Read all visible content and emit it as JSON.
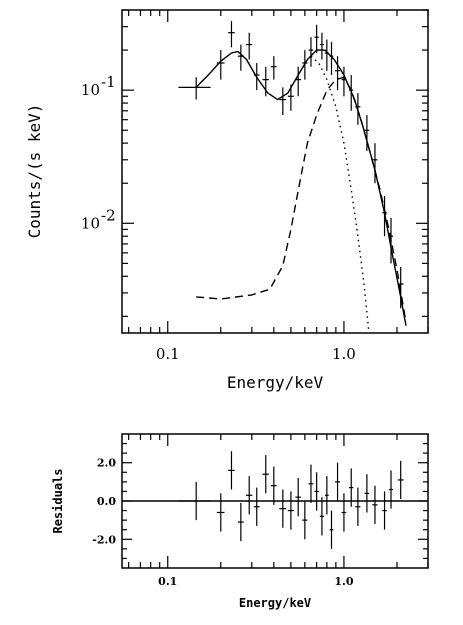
{
  "chart_data": [
    {
      "type": "scatter",
      "xlabel": "Energy/keV",
      "ylabel": "Counts/(s keV)",
      "xscale": "log",
      "yscale": "log",
      "xlim": [
        0.055,
        3.0
      ],
      "ylim": [
        0.0015,
        0.4
      ],
      "x_ticks": [
        {
          "value": 0.1,
          "label": "0.1"
        },
        {
          "value": 1.0,
          "label": "1.0"
        }
      ],
      "y_ticks": [
        {
          "value": 0.01,
          "label": "10",
          "exp": "-2"
        },
        {
          "value": 0.1,
          "label": "10",
          "exp": "-1"
        }
      ],
      "series": [
        {
          "style": "data-crosses",
          "points": [
            {
              "x": 0.145,
              "y": 0.105,
              "xerr": 0.03,
              "yerr": 0.02
            },
            {
              "x": 0.2,
              "y": 0.16,
              "xerr": 0.01,
              "yerr": 0.04
            },
            {
              "x": 0.23,
              "y": 0.27,
              "xerr": 0.01,
              "yerr": 0.06
            },
            {
              "x": 0.26,
              "y": 0.18,
              "xerr": 0.01,
              "yerr": 0.04
            },
            {
              "x": 0.29,
              "y": 0.22,
              "xerr": 0.012,
              "yerr": 0.05
            },
            {
              "x": 0.32,
              "y": 0.13,
              "xerr": 0.012,
              "yerr": 0.03
            },
            {
              "x": 0.36,
              "y": 0.12,
              "xerr": 0.015,
              "yerr": 0.03
            },
            {
              "x": 0.4,
              "y": 0.15,
              "xerr": 0.015,
              "yerr": 0.03
            },
            {
              "x": 0.45,
              "y": 0.085,
              "xerr": 0.02,
              "yerr": 0.02
            },
            {
              "x": 0.5,
              "y": 0.09,
              "xerr": 0.02,
              "yerr": 0.02
            },
            {
              "x": 0.55,
              "y": 0.12,
              "xerr": 0.02,
              "yerr": 0.03
            },
            {
              "x": 0.6,
              "y": 0.16,
              "xerr": 0.02,
              "yerr": 0.04
            },
            {
              "x": 0.65,
              "y": 0.2,
              "xerr": 0.02,
              "yerr": 0.05
            },
            {
              "x": 0.7,
              "y": 0.25,
              "xerr": 0.02,
              "yerr": 0.06
            },
            {
              "x": 0.75,
              "y": 0.22,
              "xerr": 0.02,
              "yerr": 0.05
            },
            {
              "x": 0.8,
              "y": 0.19,
              "xerr": 0.02,
              "yerr": 0.05
            },
            {
              "x": 0.85,
              "y": 0.18,
              "xerr": 0.02,
              "yerr": 0.05
            },
            {
              "x": 0.92,
              "y": 0.14,
              "xerr": 0.03,
              "yerr": 0.04
            },
            {
              "x": 1.0,
              "y": 0.12,
              "xerr": 0.03,
              "yerr": 0.03
            },
            {
              "x": 1.1,
              "y": 0.1,
              "xerr": 0.03,
              "yerr": 0.03
            },
            {
              "x": 1.2,
              "y": 0.075,
              "xerr": 0.04,
              "yerr": 0.02
            },
            {
              "x": 1.35,
              "y": 0.05,
              "xerr": 0.04,
              "yerr": 0.015
            },
            {
              "x": 1.5,
              "y": 0.03,
              "xerr": 0.05,
              "yerr": 0.01
            },
            {
              "x": 1.7,
              "y": 0.012,
              "xerr": 0.05,
              "yerr": 0.004
            },
            {
              "x": 1.85,
              "y": 0.008,
              "xerr": 0.05,
              "yerr": 0.003
            },
            {
              "x": 2.1,
              "y": 0.0035,
              "xerr": 0.08,
              "yerr": 0.0012
            }
          ]
        },
        {
          "style": "solid",
          "points": [
            {
              "x": 0.145,
              "y": 0.105
            },
            {
              "x": 0.17,
              "y": 0.13
            },
            {
              "x": 0.2,
              "y": 0.165
            },
            {
              "x": 0.23,
              "y": 0.19
            },
            {
              "x": 0.25,
              "y": 0.195
            },
            {
              "x": 0.28,
              "y": 0.17
            },
            {
              "x": 0.32,
              "y": 0.125
            },
            {
              "x": 0.37,
              "y": 0.095
            },
            {
              "x": 0.42,
              "y": 0.085
            },
            {
              "x": 0.48,
              "y": 0.095
            },
            {
              "x": 0.55,
              "y": 0.13
            },
            {
              "x": 0.62,
              "y": 0.17
            },
            {
              "x": 0.7,
              "y": 0.2
            },
            {
              "x": 0.78,
              "y": 0.2
            },
            {
              "x": 0.88,
              "y": 0.17
            },
            {
              "x": 1.0,
              "y": 0.13
            },
            {
              "x": 1.15,
              "y": 0.085
            },
            {
              "x": 1.3,
              "y": 0.05
            },
            {
              "x": 1.5,
              "y": 0.025
            },
            {
              "x": 1.7,
              "y": 0.012
            },
            {
              "x": 1.9,
              "y": 0.0055
            },
            {
              "x": 2.1,
              "y": 0.0028
            },
            {
              "x": 2.25,
              "y": 0.0017
            }
          ]
        },
        {
          "style": "dashed",
          "points": [
            {
              "x": 0.145,
              "y": 0.0028
            },
            {
              "x": 0.2,
              "y": 0.0027
            },
            {
              "x": 0.3,
              "y": 0.0029
            },
            {
              "x": 0.38,
              "y": 0.0032
            },
            {
              "x": 0.45,
              "y": 0.0048
            },
            {
              "x": 0.5,
              "y": 0.009
            },
            {
              "x": 0.56,
              "y": 0.02
            },
            {
              "x": 0.62,
              "y": 0.04
            },
            {
              "x": 0.7,
              "y": 0.065
            },
            {
              "x": 0.8,
              "y": 0.1
            },
            {
              "x": 0.9,
              "y": 0.12
            },
            {
              "x": 1.0,
              "y": 0.125
            },
            {
              "x": 1.1,
              "y": 0.1
            },
            {
              "x": 1.25,
              "y": 0.06
            },
            {
              "x": 1.4,
              "y": 0.035
            },
            {
              "x": 1.6,
              "y": 0.018
            },
            {
              "x": 1.8,
              "y": 0.009
            },
            {
              "x": 2.0,
              "y": 0.0045
            },
            {
              "x": 2.25,
              "y": 0.0018
            }
          ]
        },
        {
          "style": "dotted",
          "points": [
            {
              "x": 0.65,
              "y": 0.18
            },
            {
              "x": 0.72,
              "y": 0.16
            },
            {
              "x": 0.8,
              "y": 0.12
            },
            {
              "x": 0.9,
              "y": 0.075
            },
            {
              "x": 1.0,
              "y": 0.04
            },
            {
              "x": 1.1,
              "y": 0.018
            },
            {
              "x": 1.2,
              "y": 0.008
            },
            {
              "x": 1.3,
              "y": 0.0035
            },
            {
              "x": 1.38,
              "y": 0.0016
            }
          ]
        }
      ]
    },
    {
      "type": "scatter",
      "xlabel": "Energy/keV",
      "ylabel": "Residuals",
      "xscale": "log",
      "xlim": [
        0.055,
        3.0
      ],
      "ylim": [
        -3.5,
        3.5
      ],
      "x_ticks": [
        {
          "value": 0.1,
          "label": "0.1"
        },
        {
          "value": 1.0,
          "label": "1.0"
        }
      ],
      "y_ticks": [
        {
          "value": -2.0,
          "label": "-2.0"
        },
        {
          "value": 0.0,
          "label": "0.0"
        },
        {
          "value": 2.0,
          "label": "2.0"
        }
      ],
      "zero_line": 0,
      "series": [
        {
          "style": "data-crosses",
          "points": [
            {
              "x": 0.145,
              "y": 0.0,
              "xerr": 0.03,
              "yerr": 1.0
            },
            {
              "x": 0.2,
              "y": -0.6,
              "xerr": 0.01,
              "yerr": 1.0
            },
            {
              "x": 0.23,
              "y": 1.6,
              "xerr": 0.01,
              "yerr": 1.0
            },
            {
              "x": 0.26,
              "y": -1.1,
              "xerr": 0.01,
              "yerr": 1.0
            },
            {
              "x": 0.29,
              "y": 0.3,
              "xerr": 0.012,
              "yerr": 1.0
            },
            {
              "x": 0.32,
              "y": -0.3,
              "xerr": 0.012,
              "yerr": 1.0
            },
            {
              "x": 0.36,
              "y": 1.4,
              "xerr": 0.015,
              "yerr": 1.0
            },
            {
              "x": 0.4,
              "y": 0.8,
              "xerr": 0.015,
              "yerr": 1.0
            },
            {
              "x": 0.45,
              "y": -0.4,
              "xerr": 0.02,
              "yerr": 1.0
            },
            {
              "x": 0.5,
              "y": -0.5,
              "xerr": 0.02,
              "yerr": 1.0
            },
            {
              "x": 0.55,
              "y": 0.2,
              "xerr": 0.02,
              "yerr": 1.0
            },
            {
              "x": 0.6,
              "y": -1.0,
              "xerr": 0.02,
              "yerr": 1.0
            },
            {
              "x": 0.65,
              "y": 0.9,
              "xerr": 0.02,
              "yerr": 1.0
            },
            {
              "x": 0.7,
              "y": 0.5,
              "xerr": 0.02,
              "yerr": 1.0
            },
            {
              "x": 0.75,
              "y": -0.8,
              "xerr": 0.02,
              "yerr": 1.0
            },
            {
              "x": 0.8,
              "y": 0.3,
              "xerr": 0.02,
              "yerr": 1.0
            },
            {
              "x": 0.85,
              "y": -1.5,
              "xerr": 0.02,
              "yerr": 1.0
            },
            {
              "x": 0.92,
              "y": 1.0,
              "xerr": 0.03,
              "yerr": 1.0
            },
            {
              "x": 1.0,
              "y": -0.6,
              "xerr": 0.03,
              "yerr": 1.0
            },
            {
              "x": 1.1,
              "y": 0.7,
              "xerr": 0.03,
              "yerr": 1.0
            },
            {
              "x": 1.2,
              "y": -0.3,
              "xerr": 0.04,
              "yerr": 1.0
            },
            {
              "x": 1.35,
              "y": 0.4,
              "xerr": 0.04,
              "yerr": 1.0
            },
            {
              "x": 1.5,
              "y": -0.2,
              "xerr": 0.05,
              "yerr": 1.0
            },
            {
              "x": 1.7,
              "y": -0.5,
              "xerr": 0.05,
              "yerr": 1.0
            },
            {
              "x": 1.85,
              "y": 0.6,
              "xerr": 0.05,
              "yerr": 1.0
            },
            {
              "x": 2.1,
              "y": 1.1,
              "xerr": 0.08,
              "yerr": 1.0
            }
          ]
        }
      ]
    }
  ]
}
